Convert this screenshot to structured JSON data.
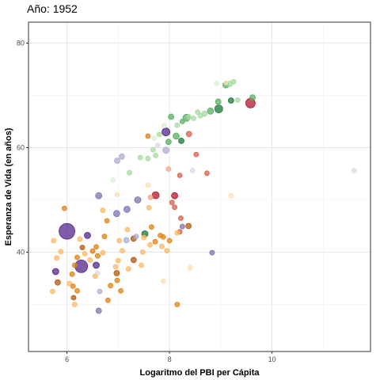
{
  "chart_data": {
    "type": "scatter",
    "title": "Año: 1952",
    "xlabel": "Logaritmo del PBI per Cápita",
    "ylabel": "Esperanza de Vida (en años)",
    "xlim": [
      5.25,
      11.92
    ],
    "ylim": [
      21,
      84
    ],
    "x_ticks": [
      6,
      8,
      10
    ],
    "y_ticks": [
      40,
      60,
      80
    ],
    "x_tick_labels": [
      "6",
      "8",
      "10"
    ],
    "y_tick_labels": [
      "40",
      "60",
      "80"
    ],
    "grid": true,
    "legend": "none",
    "colors": {
      "africa_dark": "#b35806",
      "africa_mid": "#e08214",
      "africa_light": "#fdb863",
      "africa_pale": "#fee0b6",
      "asia_dark": "#542788",
      "asia_mid": "#8073ac",
      "asia_light": "#b2abd2",
      "asia_pale": "#d8daeb",
      "americas_dark": "#b2182b",
      "americas_mid": "#d6604d",
      "americas_light": "#f4a582",
      "europe_dark": "#1b7837",
      "europe_mid": "#5aae61",
      "europe_light": "#a6dba0",
      "europe_pale": "#d9f0d3",
      "oceania": "#4d9221"
    },
    "points": [
      {
        "x": 6.0,
        "y": 44.0,
        "r": 10,
        "c": "asia_dark"
      },
      {
        "x": 6.28,
        "y": 37.3,
        "r": 8,
        "c": "asia_dark"
      },
      {
        "x": 5.78,
        "y": 36.3,
        "r": 4,
        "c": "asia_dark"
      },
      {
        "x": 6.4,
        "y": 43.2,
        "r": 4,
        "c": "asia_dark"
      },
      {
        "x": 6.57,
        "y": 37.5,
        "r": 4,
        "c": "asia_dark"
      },
      {
        "x": 6.62,
        "y": 50.8,
        "r": 4,
        "c": "asia_mid"
      },
      {
        "x": 6.97,
        "y": 47.4,
        "r": 4,
        "c": "asia_mid"
      },
      {
        "x": 7.17,
        "y": 48.2,
        "r": 4,
        "c": "asia_mid"
      },
      {
        "x": 7.38,
        "y": 50.0,
        "r": 4,
        "c": "asia_mid"
      },
      {
        "x": 7.93,
        "y": 63.0,
        "r": 5,
        "c": "asia_dark"
      },
      {
        "x": 7.93,
        "y": 59.5,
        "r": 4,
        "c": "asia_light"
      },
      {
        "x": 7.07,
        "y": 58.3,
        "r": 3.5,
        "c": "asia_light"
      },
      {
        "x": 6.98,
        "y": 57.5,
        "r": 3.5,
        "c": "asia_light"
      },
      {
        "x": 8.83,
        "y": 39.9,
        "r": 3,
        "c": "asia_mid"
      },
      {
        "x": 8.25,
        "y": 44.9,
        "r": 3,
        "c": "asia_mid"
      },
      {
        "x": 6.62,
        "y": 28.8,
        "r": 3.5,
        "c": "asia_mid"
      },
      {
        "x": 7.16,
        "y": 42.3,
        "r": 3.5,
        "c": "asia_light"
      },
      {
        "x": 6.64,
        "y": 32.5,
        "r": 3,
        "c": "asia_light"
      },
      {
        "x": 7.35,
        "y": 43.0,
        "r": 3,
        "c": "asia_light"
      },
      {
        "x": 8.45,
        "y": 55.6,
        "r": 3,
        "c": "asia_pale"
      },
      {
        "x": 11.6,
        "y": 55.6,
        "r": 3,
        "c": "asia_pale"
      },
      {
        "x": 7.77,
        "y": 60.4,
        "r": 3,
        "c": "asia_pale"
      },
      {
        "x": 6.6,
        "y": 36.0,
        "r": 3,
        "c": "asia_pale"
      },
      {
        "x": 9.58,
        "y": 68.5,
        "r": 6,
        "c": "americas_dark"
      },
      {
        "x": 7.73,
        "y": 50.9,
        "r": 4.5,
        "c": "americas_dark"
      },
      {
        "x": 8.1,
        "y": 50.8,
        "r": 4,
        "c": "americas_dark"
      },
      {
        "x": 8.38,
        "y": 62.6,
        "r": 3.5,
        "c": "americas_mid"
      },
      {
        "x": 8.52,
        "y": 58.7,
        "r": 3,
        "c": "americas_mid"
      },
      {
        "x": 8.73,
        "y": 55.1,
        "r": 3,
        "c": "americas_mid"
      },
      {
        "x": 8.2,
        "y": 54.7,
        "r": 3,
        "c": "americas_mid"
      },
      {
        "x": 8.22,
        "y": 46.5,
        "r": 3,
        "c": "americas_mid"
      },
      {
        "x": 8.1,
        "y": 48.6,
        "r": 3,
        "c": "americas_mid"
      },
      {
        "x": 8.2,
        "y": 43.9,
        "r": 3,
        "c": "americas_mid"
      },
      {
        "x": 8.05,
        "y": 49.5,
        "r": 3,
        "c": "americas_mid"
      },
      {
        "x": 7.98,
        "y": 55.9,
        "r": 3,
        "c": "americas_light"
      },
      {
        "x": 7.63,
        "y": 50.5,
        "r": 3,
        "c": "americas_light"
      },
      {
        "x": 9.1,
        "y": 72.0,
        "r": 4,
        "c": "europe_mid"
      },
      {
        "x": 9.18,
        "y": 72.2,
        "r": 3.5,
        "c": "europe_light"
      },
      {
        "x": 9.25,
        "y": 72.6,
        "r": 3,
        "c": "europe_light"
      },
      {
        "x": 8.92,
        "y": 72.3,
        "r": 3,
        "c": "europe_pale"
      },
      {
        "x": 9.62,
        "y": 69.6,
        "r": 3.5,
        "c": "europe_mid"
      },
      {
        "x": 9.33,
        "y": 69.1,
        "r": 3,
        "c": "europe_light"
      },
      {
        "x": 9.2,
        "y": 69.0,
        "r": 3.5,
        "c": "europe_dark"
      },
      {
        "x": 8.95,
        "y": 68.8,
        "r": 3.5,
        "c": "europe_mid"
      },
      {
        "x": 8.96,
        "y": 67.4,
        "r": 5,
        "c": "europe_dark"
      },
      {
        "x": 8.8,
        "y": 67.0,
        "r": 4,
        "c": "europe_mid"
      },
      {
        "x": 8.68,
        "y": 66.5,
        "r": 3.5,
        "c": "europe_light"
      },
      {
        "x": 8.6,
        "y": 66.1,
        "r": 3,
        "c": "europe_light"
      },
      {
        "x": 8.55,
        "y": 66.8,
        "r": 3,
        "c": "europe_light"
      },
      {
        "x": 8.47,
        "y": 65.6,
        "r": 3,
        "c": "europe_light"
      },
      {
        "x": 8.38,
        "y": 65.9,
        "r": 3,
        "c": "europe_light"
      },
      {
        "x": 8.25,
        "y": 65.0,
        "r": 3,
        "c": "europe_mid"
      },
      {
        "x": 8.15,
        "y": 64.3,
        "r": 3,
        "c": "europe_light"
      },
      {
        "x": 8.03,
        "y": 65.9,
        "r": 3.5,
        "c": "europe_mid"
      },
      {
        "x": 8.33,
        "y": 65.7,
        "r": 4.5,
        "c": "europe_mid"
      },
      {
        "x": 8.13,
        "y": 62.2,
        "r": 4,
        "c": "europe_mid"
      },
      {
        "x": 7.98,
        "y": 61.1,
        "r": 3.5,
        "c": "europe_mid"
      },
      {
        "x": 8.23,
        "y": 61.3,
        "r": 3.5,
        "c": "europe_dark"
      },
      {
        "x": 7.8,
        "y": 62.5,
        "r": 3,
        "c": "europe_light"
      },
      {
        "x": 7.9,
        "y": 64.2,
        "r": 3,
        "c": "europe_pale"
      },
      {
        "x": 7.7,
        "y": 61.8,
        "r": 3,
        "c": "europe_pale"
      },
      {
        "x": 7.68,
        "y": 59.6,
        "r": 3,
        "c": "europe_light"
      },
      {
        "x": 7.73,
        "y": 58.5,
        "r": 3,
        "c": "europe_light"
      },
      {
        "x": 7.58,
        "y": 57.9,
        "r": 3,
        "c": "europe_light"
      },
      {
        "x": 7.43,
        "y": 58.1,
        "r": 3,
        "c": "europe_light"
      },
      {
        "x": 7.22,
        "y": 55.2,
        "r": 3,
        "c": "europe_light"
      },
      {
        "x": 6.9,
        "y": 53.8,
        "r": 3,
        "c": "europe_pale"
      },
      {
        "x": 7.52,
        "y": 43.5,
        "r": 4,
        "c": "europe_dark"
      },
      {
        "x": 8.37,
        "y": 45.0,
        "r": 3.5,
        "c": "africa_dark"
      },
      {
        "x": 7.65,
        "y": 44.8,
        "r": 3,
        "c": "africa_mid"
      },
      {
        "x": 7.82,
        "y": 43.2,
        "r": 3,
        "c": "africa_mid"
      },
      {
        "x": 7.88,
        "y": 42.9,
        "r": 3,
        "c": "africa_mid"
      },
      {
        "x": 7.72,
        "y": 42.0,
        "r": 3,
        "c": "africa_mid"
      },
      {
        "x": 8.0,
        "y": 42.2,
        "r": 3,
        "c": "africa_mid"
      },
      {
        "x": 7.85,
        "y": 41.1,
        "r": 3,
        "c": "africa_light"
      },
      {
        "x": 7.95,
        "y": 40.3,
        "r": 3,
        "c": "africa_light"
      },
      {
        "x": 8.15,
        "y": 43.7,
        "r": 3,
        "c": "africa_light"
      },
      {
        "x": 7.62,
        "y": 41.4,
        "r": 3,
        "c": "africa_light"
      },
      {
        "x": 7.5,
        "y": 42.8,
        "r": 3,
        "c": "africa_light"
      },
      {
        "x": 7.48,
        "y": 40.0,
        "r": 3,
        "c": "africa_light"
      },
      {
        "x": 7.3,
        "y": 42.6,
        "r": 3.5,
        "c": "africa_dark"
      },
      {
        "x": 7.3,
        "y": 38.5,
        "r": 3.5,
        "c": "africa_dark"
      },
      {
        "x": 7.45,
        "y": 37.5,
        "r": 3,
        "c": "africa_light"
      },
      {
        "x": 7.2,
        "y": 36.8,
        "r": 3,
        "c": "africa_light"
      },
      {
        "x": 7.08,
        "y": 40.3,
        "r": 3,
        "c": "africa_light"
      },
      {
        "x": 7.18,
        "y": 44.3,
        "r": 3,
        "c": "africa_light"
      },
      {
        "x": 7.02,
        "y": 42.2,
        "r": 3,
        "c": "africa_light"
      },
      {
        "x": 7.0,
        "y": 38.4,
        "r": 3,
        "c": "africa_light"
      },
      {
        "x": 6.95,
        "y": 37.2,
        "r": 3,
        "c": "africa_light"
      },
      {
        "x": 6.97,
        "y": 36.0,
        "r": 3.5,
        "c": "africa_dark"
      },
      {
        "x": 6.98,
        "y": 34.6,
        "r": 3,
        "c": "africa_mid"
      },
      {
        "x": 6.85,
        "y": 33.6,
        "r": 3,
        "c": "africa_mid"
      },
      {
        "x": 7.05,
        "y": 32.6,
        "r": 3,
        "c": "africa_mid"
      },
      {
        "x": 6.8,
        "y": 30.8,
        "r": 3,
        "c": "africa_mid"
      },
      {
        "x": 6.73,
        "y": 43.0,
        "r": 3,
        "c": "africa_mid"
      },
      {
        "x": 6.78,
        "y": 46.0,
        "r": 3,
        "c": "africa_mid"
      },
      {
        "x": 6.7,
        "y": 48.0,
        "r": 3,
        "c": "africa_light"
      },
      {
        "x": 6.57,
        "y": 41.0,
        "r": 3,
        "c": "africa_mid"
      },
      {
        "x": 6.5,
        "y": 40.2,
        "r": 3,
        "c": "africa_mid"
      },
      {
        "x": 6.6,
        "y": 39.3,
        "r": 3,
        "c": "africa_mid"
      },
      {
        "x": 6.45,
        "y": 38.5,
        "r": 3,
        "c": "africa_light"
      },
      {
        "x": 6.35,
        "y": 39.7,
        "r": 3,
        "c": "africa_light"
      },
      {
        "x": 6.3,
        "y": 40.9,
        "r": 3,
        "c": "africa_dark"
      },
      {
        "x": 6.25,
        "y": 42.5,
        "r": 3,
        "c": "africa_light"
      },
      {
        "x": 6.2,
        "y": 39.0,
        "r": 3,
        "c": "africa_mid"
      },
      {
        "x": 6.15,
        "y": 37.5,
        "r": 3,
        "c": "africa_mid"
      },
      {
        "x": 6.1,
        "y": 35.8,
        "r": 3,
        "c": "africa_mid"
      },
      {
        "x": 6.05,
        "y": 34.0,
        "r": 3,
        "c": "africa_light"
      },
      {
        "x": 6.12,
        "y": 33.5,
        "r": 3,
        "c": "africa_mid"
      },
      {
        "x": 6.2,
        "y": 32.6,
        "r": 3,
        "c": "africa_mid"
      },
      {
        "x": 6.13,
        "y": 31.3,
        "r": 3,
        "c": "africa_dark"
      },
      {
        "x": 6.15,
        "y": 30.0,
        "r": 3,
        "c": "africa_light"
      },
      {
        "x": 5.95,
        "y": 48.4,
        "r": 3,
        "c": "africa_mid"
      },
      {
        "x": 5.88,
        "y": 40.1,
        "r": 3,
        "c": "africa_light"
      },
      {
        "x": 5.8,
        "y": 38.9,
        "r": 3,
        "c": "africa_light"
      },
      {
        "x": 5.82,
        "y": 34.2,
        "r": 3.5,
        "c": "africa_dark"
      },
      {
        "x": 5.72,
        "y": 32.5,
        "r": 3,
        "c": "africa_light"
      },
      {
        "x": 5.74,
        "y": 42.2,
        "r": 3,
        "c": "africa_light"
      },
      {
        "x": 6.7,
        "y": 39.9,
        "r": 3,
        "c": "africa_light"
      },
      {
        "x": 6.55,
        "y": 35.4,
        "r": 3,
        "c": "africa_light"
      },
      {
        "x": 7.58,
        "y": 62.2,
        "r": 3,
        "c": "africa_mid"
      },
      {
        "x": 7.6,
        "y": 48.5,
        "r": 3,
        "c": "africa_light"
      },
      {
        "x": 7.88,
        "y": 34.5,
        "r": 3,
        "c": "africa_pale"
      },
      {
        "x": 8.4,
        "y": 37.0,
        "r": 3,
        "c": "africa_pale"
      },
      {
        "x": 8.15,
        "y": 30.0,
        "r": 3,
        "c": "africa_mid"
      },
      {
        "x": 9.2,
        "y": 50.8,
        "r": 3,
        "c": "africa_pale"
      },
      {
        "x": 6.98,
        "y": 51.0,
        "r": 3,
        "c": "africa_pale"
      },
      {
        "x": 7.58,
        "y": 52.8,
        "r": 3,
        "c": "africa_pale"
      },
      {
        "x": 9.1,
        "y": 72.4,
        "r": 2.5,
        "c": "africa_pale"
      }
    ]
  }
}
